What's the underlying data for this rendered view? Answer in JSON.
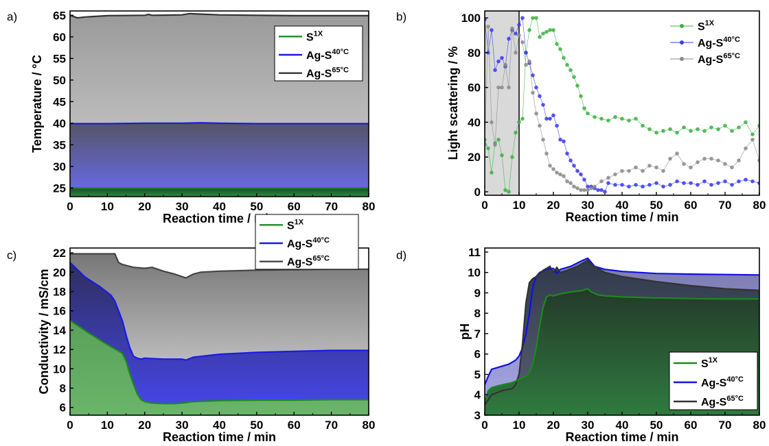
{
  "figure": {
    "panels": [
      "a)",
      "b)",
      "c)",
      "d)"
    ]
  },
  "chart_data": [
    {
      "panel": "a)",
      "type": "area",
      "xlabel": "Reaction time / min",
      "ylabel": "Temperature / °C",
      "xlim": [
        0,
        80
      ],
      "ylim": [
        23,
        66
      ],
      "xticks": [
        0,
        10,
        20,
        30,
        40,
        50,
        60,
        70,
        80
      ],
      "yticks": [
        25,
        30,
        35,
        40,
        45,
        50,
        55,
        60,
        65
      ],
      "legend_position": "top-right",
      "grid": false,
      "series": [
        {
          "name_base": "Ag-S",
          "name_sup": "65°C",
          "color": "#333333",
          "fill_top": "#9a9a9a",
          "fill_bottom": "#d2d2d2",
          "x": [
            0,
            1,
            2,
            4,
            10,
            20,
            21,
            22,
            30,
            32,
            34,
            40,
            50,
            60,
            70,
            80
          ],
          "y": [
            65,
            64.7,
            64.4,
            64.6,
            64.9,
            65.0,
            65.2,
            65.0,
            65.1,
            65.4,
            65.3,
            65.1,
            65.0,
            64.9,
            64.9,
            64.9
          ]
        },
        {
          "name_base": "Ag-S",
          "name_sup": "40°C",
          "color": "#1a1ae6",
          "fill_top": "#555566",
          "fill_bottom": "#6a6af0",
          "x": [
            0,
            10,
            20,
            30,
            35,
            40,
            50,
            60,
            70,
            80
          ],
          "y": [
            39.9,
            39.9,
            40.0,
            40.0,
            40.1,
            40.0,
            39.9,
            39.9,
            39.9,
            39.9
          ]
        },
        {
          "name_base": "S",
          "name_sup": "1X",
          "color": "#1f8a1f",
          "fill_top": "#1d4a2a",
          "fill_bottom": "#2e8b3e",
          "x": [
            0,
            20,
            40,
            60,
            80
          ],
          "y": [
            25,
            25,
            25,
            25,
            25
          ]
        }
      ]
    },
    {
      "panel": "b)",
      "type": "scatter",
      "xlabel": "Reaction time / min",
      "ylabel": "Light scattering / %",
      "xlim": [
        0,
        80
      ],
      "ylim": [
        -2,
        104
      ],
      "xticks": [
        0,
        10,
        20,
        30,
        40,
        50,
        60,
        70,
        80
      ],
      "yticks": [
        0,
        20,
        40,
        60,
        80,
        100
      ],
      "shaded_region": [
        0,
        10
      ],
      "legend_position": "top-right",
      "grid": false,
      "series": [
        {
          "name_base": "S",
          "name_sup": "1X",
          "color": "#3cb043",
          "x": [
            0,
            1,
            2,
            3,
            4,
            5,
            6,
            7,
            8,
            9,
            10,
            11,
            12,
            13,
            14,
            15,
            16,
            17,
            18,
            19,
            20,
            21,
            22,
            23,
            24,
            25,
            26,
            27,
            28,
            29,
            30,
            32,
            34,
            36,
            38,
            40,
            42,
            44,
            46,
            48,
            50,
            52,
            54,
            56,
            58,
            60,
            62,
            64,
            66,
            68,
            70,
            72,
            74,
            76,
            78,
            80
          ],
          "y": [
            30,
            25,
            11,
            28,
            30,
            21,
            1,
            0,
            20,
            34,
            40,
            42,
            80,
            93,
            100,
            100,
            89,
            91,
            92,
            93,
            93,
            85,
            82,
            77,
            73,
            70,
            66,
            61,
            55,
            48,
            45,
            43,
            42,
            41,
            43,
            42,
            41,
            42,
            38,
            36,
            34,
            35,
            36,
            34,
            37,
            35,
            36,
            35,
            37,
            36,
            38,
            35,
            37,
            40,
            33,
            38
          ]
        },
        {
          "name_base": "Ag-S",
          "name_sup": "40°C",
          "color": "#3a3af0",
          "x": [
            0,
            1,
            2,
            3,
            4,
            5,
            6,
            7,
            8,
            9,
            10,
            11,
            12,
            13,
            14,
            15,
            16,
            17,
            18,
            19,
            20,
            21,
            22,
            23,
            24,
            25,
            26,
            27,
            28,
            29,
            30,
            31,
            32,
            33,
            34,
            35,
            36,
            38,
            40,
            42,
            44,
            46,
            48,
            50,
            52,
            54,
            56,
            58,
            60,
            62,
            64,
            66,
            68,
            70,
            72,
            74,
            76,
            78,
            80
          ],
          "y": [
            99,
            80,
            93,
            70,
            75,
            77,
            72,
            88,
            93,
            91,
            96,
            100,
            80,
            74,
            67,
            60,
            55,
            50,
            42,
            42,
            44,
            38,
            30,
            29,
            22,
            18,
            15,
            12,
            10,
            7,
            3,
            3,
            2,
            1,
            1,
            0,
            5,
            4,
            4,
            3,
            4,
            3,
            4,
            5,
            3,
            4,
            6,
            5,
            5,
            4,
            6,
            4,
            5,
            6,
            4,
            6,
            7,
            6,
            5
          ]
        },
        {
          "name_base": "Ag-S",
          "name_sup": "65°C",
          "color": "#8a8a8a",
          "x": [
            0,
            1,
            2,
            3,
            4,
            5,
            6,
            7,
            8,
            9,
            10,
            11,
            12,
            13,
            14,
            15,
            16,
            17,
            18,
            19,
            20,
            21,
            22,
            23,
            24,
            25,
            26,
            27,
            28,
            29,
            30,
            31,
            32,
            34,
            36,
            38,
            40,
            42,
            44,
            46,
            48,
            50,
            52,
            54,
            56,
            58,
            60,
            62,
            64,
            66,
            68,
            70,
            72,
            74,
            76,
            78,
            80
          ],
          "y": [
            27,
            95,
            40,
            27,
            60,
            60,
            73,
            60,
            94,
            80,
            90,
            86,
            73,
            75,
            57,
            45,
            38,
            30,
            22,
            15,
            13,
            11,
            10,
            9,
            6,
            5,
            3,
            2,
            1,
            1,
            1,
            2,
            3,
            6,
            8,
            10,
            12,
            12,
            14,
            12,
            15,
            14,
            12,
            19,
            22,
            16,
            14,
            17,
            19,
            19,
            18,
            16,
            14,
            18,
            25,
            30,
            18
          ]
        }
      ]
    },
    {
      "panel": "c)",
      "type": "area",
      "xlabel": "Reaction time / min",
      "ylabel": "Conductivity / mS/cm",
      "xlim": [
        0,
        80
      ],
      "ylim": [
        5.2,
        22.5
      ],
      "xticks": [
        0,
        10,
        20,
        30,
        40,
        50,
        60,
        70,
        80
      ],
      "yticks": [
        6,
        8,
        10,
        12,
        14,
        16,
        18,
        20,
        22
      ],
      "legend_position": "center-right",
      "grid": false,
      "series": [
        {
          "name_base": "Ag-S",
          "name_sup": "65°C",
          "color": "#444444",
          "fill_top": "#777777",
          "fill_bottom": "#dedede",
          "x": [
            0,
            12,
            13,
            14,
            15,
            17,
            20,
            22,
            25,
            28,
            31,
            33,
            35,
            40,
            50,
            60,
            70,
            80
          ],
          "y": [
            21.9,
            21.9,
            21.0,
            20.8,
            20.7,
            20.5,
            20.4,
            20.5,
            20.1,
            19.8,
            19.4,
            19.8,
            20.0,
            20.1,
            20.2,
            20.25,
            20.3,
            20.3
          ]
        },
        {
          "name_base": "Ag-S",
          "name_sup": "40°C",
          "color": "#1a1ae6",
          "fill_top": "#2e2e5e",
          "fill_bottom": "#4747f0",
          "x": [
            0,
            4,
            8,
            11,
            12,
            13,
            14,
            15,
            16,
            17,
            18,
            19,
            20,
            25,
            30,
            31,
            33,
            40,
            50,
            60,
            70,
            80
          ],
          "y": [
            21.0,
            19.5,
            18.5,
            17.6,
            17.0,
            16.0,
            15.0,
            13.5,
            12.2,
            11.3,
            11.1,
            11.0,
            11.1,
            11.0,
            11.0,
            10.9,
            11.2,
            11.5,
            11.7,
            11.8,
            11.9,
            11.9
          ]
        },
        {
          "name_base": "S",
          "name_sup": "1X",
          "color": "#1f8a1f",
          "fill_top": "#5aa05a",
          "fill_bottom": "#6ab56a",
          "x": [
            0,
            5,
            10,
            14,
            15,
            16,
            17,
            18,
            19,
            20,
            22,
            25,
            28,
            30,
            33,
            40,
            50,
            60,
            70,
            80
          ],
          "y": [
            15.0,
            13.7,
            12.5,
            11.6,
            10.8,
            9.5,
            8.4,
            7.4,
            6.8,
            6.6,
            6.45,
            6.4,
            6.4,
            6.45,
            6.6,
            6.7,
            6.75,
            6.75,
            6.8,
            6.8
          ]
        }
      ]
    },
    {
      "panel": "d)",
      "type": "area",
      "xlabel": "Reaction time / min",
      "ylabel": "pH",
      "xlim": [
        0,
        80
      ],
      "ylim": [
        3,
        11.2
      ],
      "xticks": [
        0,
        10,
        20,
        30,
        40,
        50,
        60,
        70,
        80
      ],
      "yticks": [
        3,
        4,
        5,
        6,
        7,
        8,
        9,
        10,
        11
      ],
      "legend_position": "bottom-right",
      "grid": false,
      "series": [
        {
          "name_base": "Ag-S",
          "name_sup": "40°C",
          "color": "#1010e0",
          "fill_top": "#7a7ab0",
          "fill_bottom": "#a8a8e6",
          "x": [
            0,
            1,
            2,
            4,
            7,
            9,
            10,
            11,
            12,
            13,
            14,
            15,
            16,
            18,
            20,
            21,
            22,
            25,
            28,
            30,
            31,
            32,
            35,
            40,
            50,
            60,
            70,
            80
          ],
          "y": [
            4.5,
            4.9,
            5.25,
            5.35,
            5.5,
            5.7,
            5.9,
            6.3,
            7.0,
            8.0,
            9.3,
            9.8,
            10.0,
            10.15,
            10.2,
            9.95,
            10.15,
            10.3,
            10.55,
            10.7,
            10.5,
            10.3,
            10.15,
            10.05,
            9.95,
            9.92,
            9.9,
            9.88
          ]
        },
        {
          "name_base": "Ag-S",
          "name_sup": "65°C",
          "color": "#333333",
          "fill_top": "#303a4a",
          "fill_bottom": "#5a5f78",
          "x": [
            0,
            2,
            5,
            8,
            9,
            10,
            11,
            12,
            13,
            14,
            15,
            17,
            19,
            20,
            21,
            22,
            24,
            27,
            30,
            31,
            33,
            35,
            40,
            50,
            60,
            70,
            80
          ],
          "y": [
            3.5,
            4.0,
            4.2,
            4.3,
            4.5,
            5.0,
            6.5,
            8.5,
            9.5,
            9.7,
            9.8,
            10.1,
            10.3,
            10.0,
            10.25,
            10.0,
            10.1,
            10.3,
            10.6,
            10.4,
            10.2,
            10.0,
            9.8,
            9.55,
            9.35,
            9.2,
            9.12
          ]
        },
        {
          "name_base": "S",
          "name_sup": "1X",
          "color": "#1a8a1a",
          "fill_top": "#243a2a",
          "fill_bottom": "#2f7a3f",
          "x": [
            0,
            1,
            2,
            4,
            8,
            12,
            13,
            14,
            15,
            16,
            17,
            18,
            19,
            20,
            22,
            25,
            28,
            30,
            31,
            33,
            35,
            40,
            50,
            60,
            70,
            80
          ],
          "y": [
            3.6,
            4.2,
            4.35,
            4.45,
            4.6,
            4.9,
            5.1,
            5.5,
            6.3,
            7.4,
            8.3,
            8.8,
            8.9,
            8.85,
            8.95,
            9.05,
            9.1,
            9.2,
            9.05,
            8.9,
            8.85,
            8.8,
            8.75,
            8.72,
            8.7,
            8.7
          ]
        }
      ]
    }
  ]
}
